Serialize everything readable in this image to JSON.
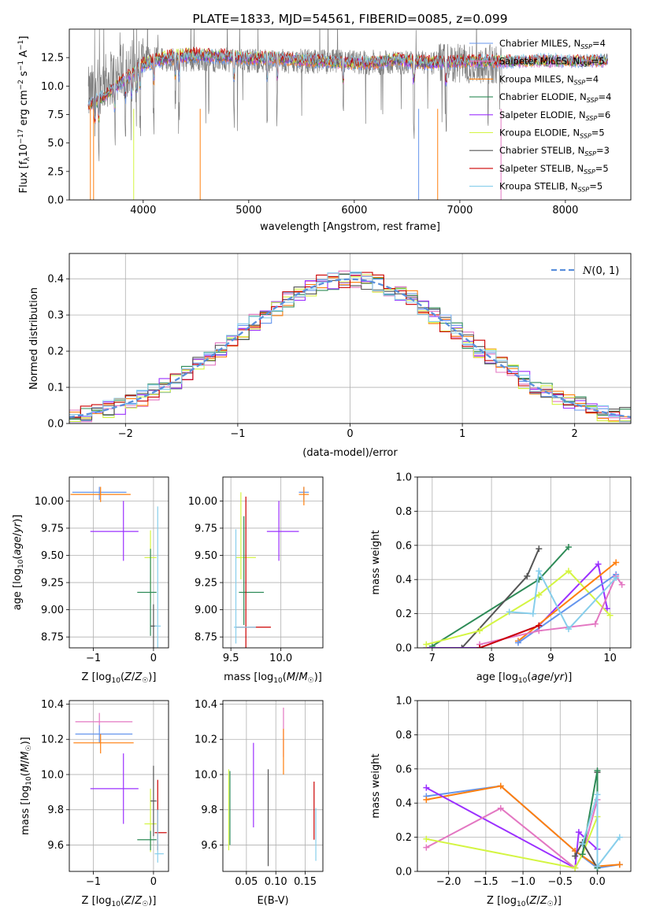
{
  "chart_data": [
    {
      "id": "spectrum",
      "type": "line",
      "title": "PLATE=1833, MJD=54561, FIBERID=0085, z=0.099",
      "xlabel": "wavelength [Angstrom, rest frame]",
      "ylabel": "Flux [f_λ 10^{-17} erg cm^{-2} s^{-1} A^{-1}]",
      "xlim": [
        3300,
        8620
      ],
      "ylim": [
        0,
        15
      ],
      "xticks": [
        "4000",
        "5000",
        "6000",
        "7000",
        "8000"
      ],
      "yticks": [
        "0.0",
        "2.5",
        "5.0",
        "7.5",
        "10.0",
        "12.5"
      ],
      "grid": false,
      "legend_position": "top-right",
      "legend": [
        {
          "label": "Chabrier MILES, N",
          "sub": "SSP",
          "suffix": "=4",
          "color": "#6495ed"
        },
        {
          "label": "Salpeter MILES, N",
          "sub": "SSP",
          "suffix": "=5",
          "color": "#e377c2"
        },
        {
          "label": "Kroupa MILES, N",
          "sub": "SSP",
          "suffix": "=4",
          "color": "#ff7f0e"
        },
        {
          "label": "Chabrier ELODIE, N",
          "sub": "SSP",
          "suffix": "=4",
          "color": "#2e8b57"
        },
        {
          "label": "Salpeter ELODIE, N",
          "sub": "SSP",
          "suffix": "=6",
          "color": "#9b30ff"
        },
        {
          "label": "Kroupa ELODIE, N",
          "sub": "SSP",
          "suffix": "=5",
          "color": "#d4f542"
        },
        {
          "label": "Chabrier STELIB, N",
          "sub": "SSP",
          "suffix": "=3",
          "color": "#555555"
        },
        {
          "label": "Salpeter STELIB, N",
          "sub": "SSP",
          "suffix": "=5",
          "color": "#cc0000"
        },
        {
          "label": "Kroupa STELIB, N",
          "sub": "SSP",
          "suffix": "=5",
          "color": "#87ceeb"
        }
      ],
      "series": [
        {
          "name": "Chabrier MILES",
          "x": [
            3480,
            3600,
            3800,
            4000,
            4200,
            4400,
            4600,
            4800,
            5000,
            5200,
            5400,
            5600,
            5800,
            6000,
            6200,
            6400,
            6600,
            6800,
            7000,
            7200,
            7400,
            7600,
            7800,
            8000,
            8200,
            8400
          ],
          "y": [
            8.4,
            9.0,
            10.3,
            11.8,
            12.3,
            12.5,
            12.6,
            12.5,
            12.4,
            12.4,
            12.3,
            12.2,
            12.1,
            12.0,
            12.0,
            12.3,
            12.0,
            12.0,
            12.1,
            12.2,
            12.1,
            12.2,
            12.3,
            12.2,
            12.2,
            12.3
          ]
        },
        {
          "name": "Kroupa ELODIE",
          "x": [
            3480,
            3600,
            3800,
            4000,
            4200,
            4400,
            4600,
            4800,
            5000,
            5200,
            5400,
            5600,
            5800,
            6000,
            6200,
            6400,
            6600,
            6800,
            7000
          ],
          "y": [
            8.2,
            8.8,
            10.5,
            12.0,
            12.6,
            12.9,
            12.8,
            12.7,
            12.5,
            12.6,
            12.4,
            12.3,
            12.1,
            12.0,
            12.1,
            12.4,
            12.2,
            12.1,
            12.2
          ]
        }
      ],
      "observed_series": {
        "name": "data",
        "color": "#808080",
        "x_range": [
          3480,
          7400
        ],
        "y_mean": 12.0,
        "y_spread": 1.6
      }
    },
    {
      "id": "residuals",
      "type": "histogram",
      "xlabel": "(data-model)/error",
      "ylabel": "Normed distribution",
      "xlim": [
        -2.5,
        2.5
      ],
      "ylim": [
        0,
        0.47
      ],
      "xticks": [
        "−2",
        "−1",
        "0",
        "1",
        "2"
      ],
      "yticks": [
        "0.0",
        "0.1",
        "0.2",
        "0.3",
        "0.4"
      ],
      "grid": true,
      "legend_position": "top-right",
      "legend_label": "N(0, 1)",
      "reference_curve": {
        "name": "N(0,1)",
        "mean": 0,
        "sigma": 1,
        "color": "#5a8fdc"
      },
      "bin_width": 0.1,
      "histogram_colors": [
        "#6495ed",
        "#e377c2",
        "#ff7f0e",
        "#2e8b57",
        "#9b30ff",
        "#d4f542",
        "#555555",
        "#cc0000",
        "#87ceeb"
      ]
    },
    {
      "id": "age-vs-Z",
      "type": "errorbar",
      "xlabel": "Z [log10(Z/Z☉)]",
      "ylabel": "age  [log10(age/yr)]",
      "xlim": [
        -1.4,
        0.25
      ],
      "ylim": [
        8.65,
        10.22
      ],
      "xticks": [
        "−1",
        "0"
      ],
      "yticks": [
        "8.75",
        "9.00",
        "9.25",
        "9.50",
        "9.75",
        "10.00"
      ],
      "grid": true,
      "points": [
        {
          "x": -0.9,
          "xerr": [
            0.45,
            0.45
          ],
          "y": 10.08,
          "yerr": [
            0.07,
            0.05
          ],
          "color": "#6495ed"
        },
        {
          "x": -0.88,
          "xerr": [
            0.5,
            0.5
          ],
          "y": 10.06,
          "yerr": [
            0.07,
            0.07
          ],
          "color": "#ff7f0e"
        },
        {
          "x": -0.5,
          "xerr": [
            0.55,
            0.25
          ],
          "y": 9.72,
          "yerr": [
            0.27,
            0.28
          ],
          "color": "#9b30ff"
        },
        {
          "x": -0.05,
          "xerr": [
            0.1,
            0.1
          ],
          "y": 9.48,
          "yerr": [
            0.42,
            0.25
          ],
          "color": "#d4f542"
        },
        {
          "x": -0.05,
          "xerr": [
            0.22,
            0.1
          ],
          "y": 9.16,
          "yerr": [
            0.4,
            0.4
          ],
          "color": "#2e8b57"
        },
        {
          "x": 0.0,
          "xerr": [
            0.05,
            0.05
          ],
          "y": 8.85,
          "yerr": [
            0.2,
            0.2
          ],
          "color": "#555555"
        },
        {
          "x": 0.07,
          "xerr": [
            0.05,
            0.05
          ],
          "y": 8.85,
          "yerr": [
            0.2,
            1.1
          ],
          "color": "#87ceeb"
        }
      ]
    },
    {
      "id": "age-vs-mass",
      "type": "errorbar",
      "xlabel": "mass [log10(M/M☉)]",
      "ylabel": "",
      "xlim": [
        9.42,
        10.42
      ],
      "ylim": [
        8.65,
        10.22
      ],
      "xticks": [
        "9.5",
        "10.0"
      ],
      "yticks": [
        "8.75",
        "9.00",
        "9.25",
        "9.50",
        "9.75",
        "10.00"
      ],
      "grid": true,
      "points": [
        {
          "x": 10.23,
          "xerr": [
            0.05,
            0.05
          ],
          "y": 10.08,
          "yerr": [
            0.07,
            0.05
          ],
          "color": "#6495ed"
        },
        {
          "x": 10.23,
          "xerr": [
            0.05,
            0.05
          ],
          "y": 10.06,
          "yerr": [
            0.1,
            0.07
          ],
          "color": "#ff7f0e"
        },
        {
          "x": 9.98,
          "xerr": [
            0.12,
            0.2
          ],
          "y": 9.72,
          "yerr": [
            0.27,
            0.28
          ],
          "color": "#9b30ff"
        },
        {
          "x": 9.6,
          "xerr": [
            0.05,
            0.15
          ],
          "y": 9.48,
          "yerr": [
            0.2,
            0.6
          ],
          "color": "#d4f542"
        },
        {
          "x": 9.63,
          "xerr": [
            0.05,
            0.2
          ],
          "y": 9.16,
          "yerr": [
            0.3,
            0.7
          ],
          "color": "#2e8b57"
        },
        {
          "x": 9.65,
          "xerr": [
            0.1,
            0.25
          ],
          "y": 8.84,
          "yerr": [
            0.2,
            1.2
          ],
          "color": "#cc0000"
        },
        {
          "x": 9.55,
          "xerr": [
            0.02,
            0.2
          ],
          "y": 8.84,
          "yerr": [
            0.15,
            0.9
          ],
          "color": "#87ceeb"
        }
      ]
    },
    {
      "id": "weight-vs-age",
      "type": "line",
      "xlabel": "age  [log10(age/yr)]",
      "ylabel": "mass weight",
      "xlim": [
        6.75,
        10.35
      ],
      "ylim": [
        0,
        1
      ],
      "xticks": [
        "7",
        "8",
        "9",
        "10"
      ],
      "yticks": [
        "0.0",
        "0.2",
        "0.4",
        "0.6",
        "0.8",
        "1.0"
      ],
      "grid": true,
      "series": [
        {
          "color": "#2e8b57",
          "x": [
            7.0,
            8.8,
            9.3
          ],
          "y": [
            0.01,
            0.4,
            0.59
          ]
        },
        {
          "color": "#555555",
          "x": [
            7.5,
            8.6,
            8.8
          ],
          "y": [
            0.0,
            0.42,
            0.58
          ]
        },
        {
          "color": "#9b30ff",
          "x": [
            6.9,
            7.8,
            8.8,
            9.8,
            9.95
          ],
          "y": [
            0.0,
            0.0,
            0.13,
            0.49,
            0.23
          ]
        },
        {
          "color": "#d4f542",
          "x": [
            6.9,
            7.8,
            8.8,
            9.3,
            10.0
          ],
          "y": [
            0.02,
            0.1,
            0.31,
            0.45,
            0.19
          ]
        },
        {
          "color": "#ff7f0e",
          "x": [
            8.45,
            10.1
          ],
          "y": [
            0.04,
            0.5
          ]
        },
        {
          "color": "#6495ed",
          "x": [
            8.45,
            10.1
          ],
          "y": [
            0.03,
            0.43
          ]
        },
        {
          "color": "#e377c2",
          "x": [
            7.8,
            8.8,
            9.75,
            10.1,
            10.2
          ],
          "y": [
            0.02,
            0.1,
            0.14,
            0.42,
            0.37
          ]
        },
        {
          "color": "#87ceeb",
          "x": [
            8.3,
            8.7,
            8.8,
            9.3,
            10.1
          ],
          "y": [
            0.21,
            0.2,
            0.45,
            0.11,
            0.41
          ]
        },
        {
          "color": "#cc0000",
          "x": [
            7.8,
            8.8
          ],
          "y": [
            0.0,
            0.13
          ]
        }
      ]
    },
    {
      "id": "mass-vs-Z",
      "type": "errorbar",
      "xlabel": "Z [log10(Z/Z☉)]",
      "ylabel": "mass [log10(M/M☉)]",
      "xlim": [
        -1.4,
        0.25
      ],
      "ylim": [
        9.45,
        10.42
      ],
      "xticks": [
        "−1",
        "0"
      ],
      "yticks": [
        "9.6",
        "9.8",
        "10.0",
        "10.2",
        "10.4"
      ],
      "grid": true,
      "points": [
        {
          "x": -0.9,
          "xerr": [
            0.4,
            0.55
          ],
          "y": 10.3,
          "yerr": [
            0.05,
            0.05
          ],
          "color": "#e377c2"
        },
        {
          "x": -0.9,
          "xerr": [
            0.4,
            0.55
          ],
          "y": 10.23,
          "yerr": [
            0.05,
            0.05
          ],
          "color": "#6495ed"
        },
        {
          "x": -0.88,
          "xerr": [
            0.45,
            0.55
          ],
          "y": 10.18,
          "yerr": [
            0.06,
            0.05
          ],
          "color": "#ff7f0e"
        },
        {
          "x": -0.5,
          "xerr": [
            0.55,
            0.25
          ],
          "y": 9.92,
          "yerr": [
            0.2,
            0.2
          ],
          "color": "#9b30ff"
        },
        {
          "x": -0.05,
          "xerr": [
            0.1,
            0.1
          ],
          "y": 9.72,
          "yerr": [
            0.16,
            0.2
          ],
          "color": "#d4f542"
        },
        {
          "x": -0.05,
          "xerr": [
            0.22,
            0.1
          ],
          "y": 9.63,
          "yerr": [
            0.06,
            0.05
          ],
          "color": "#2e8b57"
        },
        {
          "x": 0.0,
          "xerr": [
            0.05,
            0.05
          ],
          "y": 9.85,
          "yerr": [
            0.2,
            0.2
          ],
          "color": "#555555"
        },
        {
          "x": 0.07,
          "xerr": [
            0.05,
            0.15
          ],
          "y": 9.67,
          "yerr": [
            0.1,
            0.3
          ],
          "color": "#cc0000"
        },
        {
          "x": 0.07,
          "xerr": [
            0.05,
            0.1
          ],
          "y": 9.55,
          "yerr": [
            0.05,
            0.25
          ],
          "color": "#87ceeb"
        }
      ]
    },
    {
      "id": "mass-vs-EBV",
      "type": "errorbar",
      "xlabel": "E(B-V)",
      "ylabel": "",
      "xlim": [
        0.01,
        0.18
      ],
      "ylim": [
        9.45,
        10.42
      ],
      "xticks": [
        "0.05",
        "0.10",
        "0.15"
      ],
      "yticks": [
        "9.6",
        "9.8",
        "10.0",
        "10.2",
        "10.4"
      ],
      "grid": true,
      "points": [
        {
          "x": 0.02,
          "y": 9.8,
          "yerr": [
            0.23,
            0.23
          ],
          "color": "#d4f542"
        },
        {
          "x": 0.022,
          "y": 9.8,
          "yerr": [
            0.2,
            0.22
          ],
          "color": "#2e8b57"
        },
        {
          "x": 0.062,
          "y": 9.95,
          "yerr": [
            0.25,
            0.23
          ],
          "color": "#9b30ff"
        },
        {
          "x": 0.087,
          "y": 9.76,
          "yerr": [
            0.28,
            0.27
          ],
          "color": "#555555"
        },
        {
          "x": 0.113,
          "y": 10.2,
          "yerr": [
            0.1,
            0.18
          ],
          "color": "#e377c2"
        },
        {
          "x": 0.113,
          "y": 10.1,
          "yerr": [
            0.1,
            0.16
          ],
          "color": "#ff7f0e"
        },
        {
          "x": 0.165,
          "y": 9.8,
          "yerr": [
            0.17,
            0.16
          ],
          "color": "#cc0000"
        },
        {
          "x": 0.168,
          "y": 9.66,
          "yerr": [
            0.15,
            0.15
          ],
          "color": "#87ceeb"
        }
      ]
    },
    {
      "id": "weight-vs-Z",
      "type": "line",
      "xlabel": "Z [log10(Z/Z☉)]",
      "ylabel": "mass weight",
      "xlim": [
        -2.42,
        0.45
      ],
      "ylim": [
        0,
        1
      ],
      "xticks": [
        "−2.0",
        "−1.5",
        "−1.0",
        "−0.5",
        "0.0"
      ],
      "yticks": [
        "0.0",
        "0.2",
        "0.4",
        "0.6",
        "0.8",
        "1.0"
      ],
      "grid": true,
      "series": [
        {
          "color": "#6495ed",
          "x": [
            -2.3,
            -1.3,
            -0.3,
            0.0,
            0.3
          ],
          "y": [
            0.44,
            0.5,
            0.12,
            0.02,
            0.04
          ]
        },
        {
          "color": "#ff7f0e",
          "x": [
            -2.3,
            -1.3,
            -0.3,
            0.0,
            0.3
          ],
          "y": [
            0.42,
            0.5,
            0.12,
            0.03,
            0.04
          ]
        },
        {
          "color": "#9b30ff",
          "x": [
            -2.3,
            -0.3,
            -0.25,
            0.0
          ],
          "y": [
            0.49,
            0.02,
            0.23,
            0.13
          ]
        },
        {
          "color": "#e377c2",
          "x": [
            -2.3,
            -1.3,
            -0.3,
            -0.2,
            0.0
          ],
          "y": [
            0.14,
            0.37,
            0.02,
            0.1,
            0.42
          ]
        },
        {
          "color": "#d4f542",
          "x": [
            -2.3,
            -0.3,
            -0.2,
            0.0
          ],
          "y": [
            0.19,
            0.02,
            0.1,
            0.32
          ]
        },
        {
          "color": "#555555",
          "x": [
            -0.3,
            -0.2,
            0.0,
            0.0
          ],
          "y": [
            0.09,
            0.17,
            0.02,
            0.58
          ]
        },
        {
          "color": "#2e8b57",
          "x": [
            -0.2,
            0.0,
            0.0
          ],
          "y": [
            0.1,
            0.59,
            0.02
          ]
        },
        {
          "color": "#87ceeb",
          "x": [
            -0.2,
            0.0,
            0.0,
            0.3
          ],
          "y": [
            0.16,
            0.45,
            0.03,
            0.2
          ]
        }
      ]
    }
  ]
}
